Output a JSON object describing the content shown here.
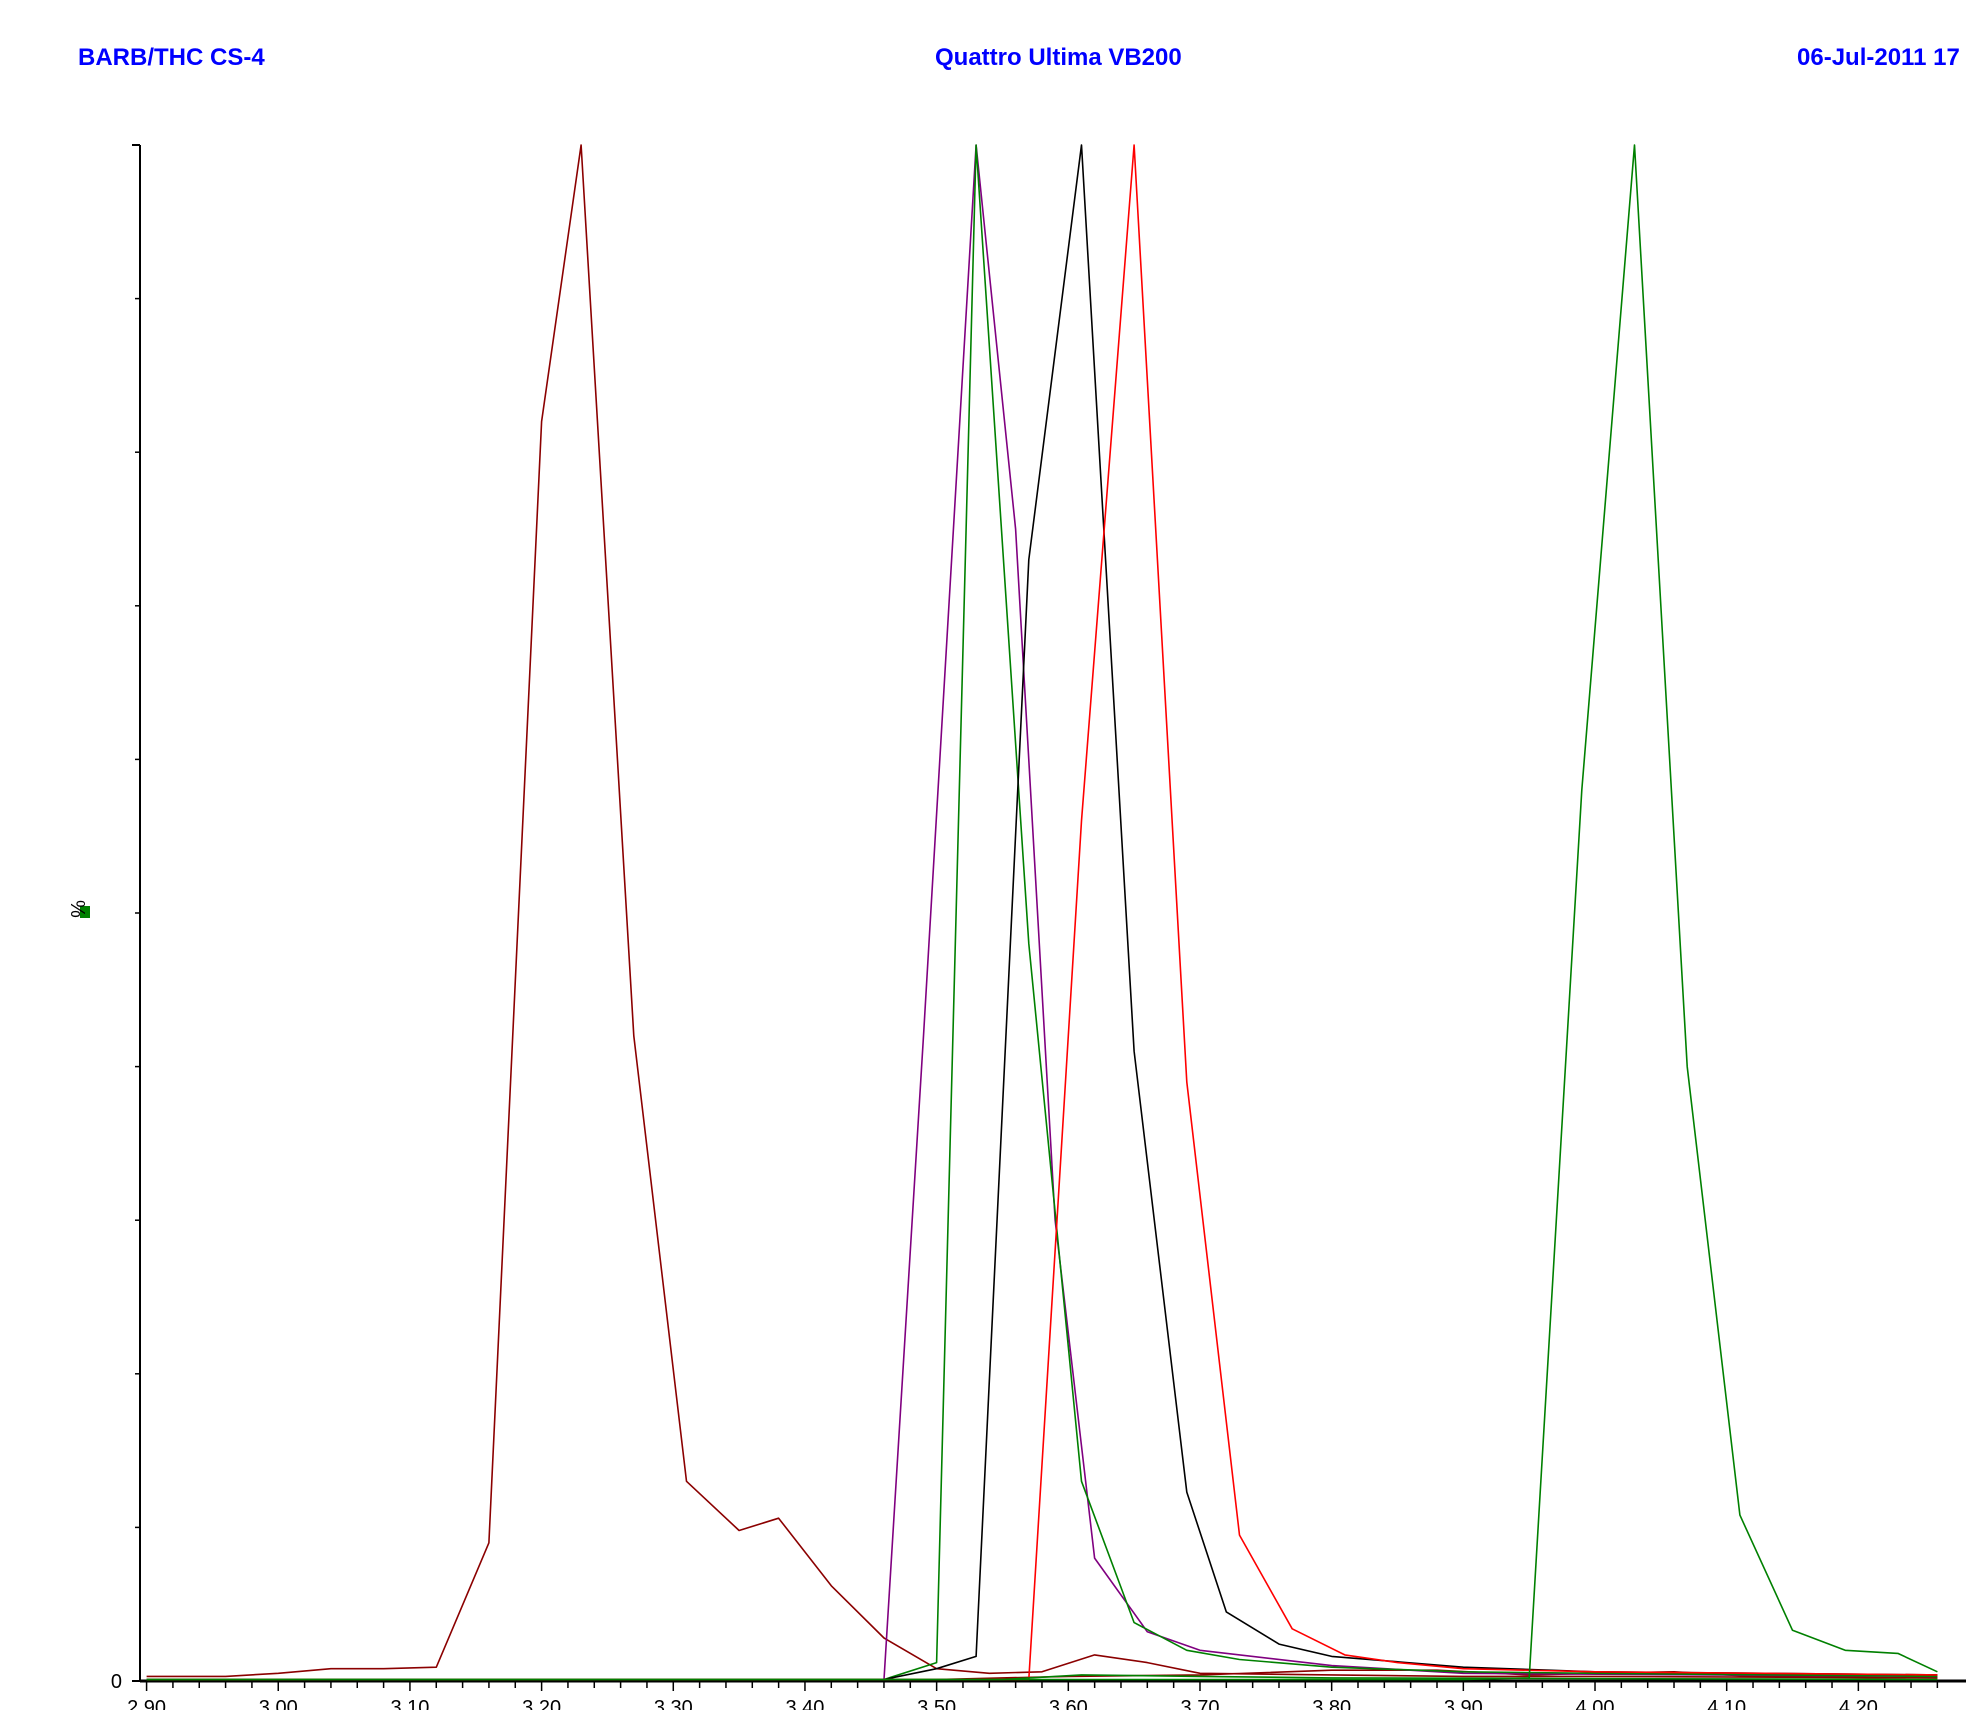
{
  "header": {
    "left": "BARB/THC CS-4",
    "center": "Quattro Ultima VB200",
    "right": "06-Jul-2011  17"
  },
  "chart_data": {
    "type": "line",
    "ylabel": "%",
    "ylabel_marker_color": "#008000",
    "xlim": [
      2.895,
      4.262
    ],
    "ylim": [
      0,
      100
    ],
    "x_ticks": [
      "2.90",
      "3.00",
      "3.10",
      "3.20",
      "3.30",
      "3.40",
      "3.50",
      "3.60",
      "3.70",
      "3.80",
      "3.90",
      "4.00",
      "4.10",
      "4.20"
    ],
    "y_ticks": [
      "0"
    ],
    "series": [
      {
        "color": "#8b0000",
        "points": [
          [
            2.9,
            0.3
          ],
          [
            2.96,
            0.3
          ],
          [
            3.0,
            0.5
          ],
          [
            3.04,
            0.8
          ],
          [
            3.08,
            0.8
          ],
          [
            3.12,
            0.9
          ],
          [
            3.16,
            9.0
          ],
          [
            3.2,
            82
          ],
          [
            3.23,
            100
          ],
          [
            3.27,
            42
          ],
          [
            3.31,
            13
          ],
          [
            3.35,
            9.8
          ],
          [
            3.38,
            10.6
          ],
          [
            3.42,
            6.2
          ],
          [
            3.46,
            2.8
          ],
          [
            3.5,
            0.8
          ],
          [
            3.54,
            0.5
          ],
          [
            3.58,
            0.6
          ],
          [
            3.62,
            1.7
          ],
          [
            3.66,
            1.2
          ],
          [
            3.7,
            0.5
          ],
          [
            3.8,
            0.4
          ],
          [
            3.9,
            0.3
          ],
          [
            4.0,
            0.3
          ],
          [
            4.26,
            0.2
          ]
        ]
      },
      {
        "color": "#8b0000",
        "points": [
          [
            2.9,
            0.1
          ],
          [
            3.5,
            0.1
          ],
          [
            3.6,
            0.3
          ],
          [
            3.7,
            0.4
          ],
          [
            3.8,
            0.7
          ],
          [
            3.88,
            0.7
          ],
          [
            3.95,
            0.4
          ],
          [
            4.0,
            0.5
          ],
          [
            4.06,
            0.6
          ],
          [
            4.12,
            0.3
          ],
          [
            4.26,
            0.2
          ]
        ]
      },
      {
        "color": "#800080",
        "points": [
          [
            2.9,
            0.1
          ],
          [
            3.46,
            0.1
          ],
          [
            3.49,
            42
          ],
          [
            3.53,
            100
          ],
          [
            3.56,
            75
          ],
          [
            3.59,
            30
          ],
          [
            3.62,
            8
          ],
          [
            3.66,
            3.2
          ],
          [
            3.7,
            2
          ],
          [
            3.8,
            1
          ],
          [
            3.9,
            0.5
          ],
          [
            4.26,
            0.3
          ]
        ]
      },
      {
        "color": "#008000",
        "points": [
          [
            2.9,
            0.1
          ],
          [
            3.46,
            0.1
          ],
          [
            3.5,
            1.2
          ],
          [
            3.53,
            100
          ],
          [
            3.57,
            48
          ],
          [
            3.61,
            13
          ],
          [
            3.65,
            3.8
          ],
          [
            3.69,
            2
          ],
          [
            3.73,
            1.4
          ],
          [
            3.8,
            0.9
          ],
          [
            3.9,
            0.6
          ],
          [
            4.0,
            0.5
          ],
          [
            4.26,
            0.3
          ]
        ]
      },
      {
        "color": "#000000",
        "points": [
          [
            2.9,
            0.1
          ],
          [
            3.46,
            0.1
          ],
          [
            3.5,
            0.8
          ],
          [
            3.53,
            1.6
          ],
          [
            3.57,
            73
          ],
          [
            3.61,
            100
          ],
          [
            3.65,
            41
          ],
          [
            3.69,
            12.3
          ],
          [
            3.72,
            4.5
          ],
          [
            3.76,
            2.4
          ],
          [
            3.8,
            1.6
          ],
          [
            3.9,
            0.9
          ],
          [
            4.0,
            0.6
          ],
          [
            4.26,
            0.4
          ]
        ]
      },
      {
        "color": "#ff0000",
        "points": [
          [
            2.9,
            0.1
          ],
          [
            3.5,
            0.1
          ],
          [
            3.57,
            0.1
          ],
          [
            3.61,
            56
          ],
          [
            3.65,
            100
          ],
          [
            3.69,
            39
          ],
          [
            3.73,
            9.5
          ],
          [
            3.77,
            3.4
          ],
          [
            3.81,
            1.7
          ],
          [
            3.85,
            1.2
          ],
          [
            3.9,
            0.8
          ],
          [
            4.0,
            0.6
          ],
          [
            4.26,
            0.4
          ]
        ]
      },
      {
        "color": "#008000",
        "points": [
          [
            2.9,
            0.1
          ],
          [
            3.9,
            0.1
          ],
          [
            3.95,
            0.2
          ],
          [
            3.99,
            58
          ],
          [
            4.03,
            100
          ],
          [
            4.07,
            40
          ],
          [
            4.11,
            10.8
          ],
          [
            4.15,
            3.3
          ],
          [
            4.19,
            2
          ],
          [
            4.23,
            1.8
          ],
          [
            4.26,
            0.6
          ]
        ]
      },
      {
        "color": "#008000",
        "points": [
          [
            2.9,
            0.1
          ],
          [
            3.55,
            0.1
          ],
          [
            3.61,
            0.4
          ],
          [
            3.7,
            0.3
          ],
          [
            3.8,
            0.2
          ],
          [
            4.26,
            0.1
          ]
        ]
      }
    ]
  }
}
